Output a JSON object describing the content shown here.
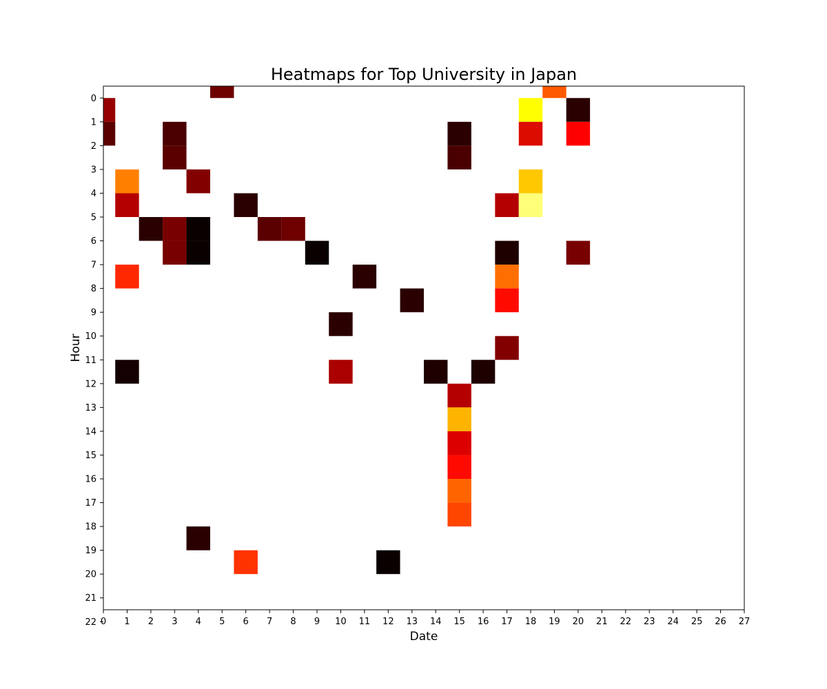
{
  "chart_data": {
    "type": "heatmap",
    "title": "Heatmaps for Top University in Japan",
    "xlabel": "Date",
    "ylabel": "Hour",
    "x_ticks": [
      "0",
      "1",
      "2",
      "3",
      "4",
      "5",
      "6",
      "7",
      "8",
      "9",
      "10",
      "11",
      "12",
      "13",
      "14",
      "15",
      "16",
      "17",
      "18",
      "19",
      "20",
      "21",
      "22",
      "23",
      "24",
      "25",
      "26",
      "27"
    ],
    "y_ticks": [
      "0",
      "1",
      "2",
      "3",
      "4",
      "5",
      "6",
      "7",
      "8",
      "9",
      "10",
      "11",
      "12",
      "13",
      "14",
      "15",
      "16",
      "17",
      "18",
      "19",
      "20",
      "21",
      "22"
    ],
    "xlim": [
      0,
      27
    ],
    "ylim": [
      22,
      0
    ],
    "colormap": "hot",
    "background_color": "#ffffff",
    "grid": false,
    "cells": [
      {
        "date": 5,
        "hour": 0,
        "color": "#6e0000"
      },
      {
        "date": 19,
        "hour": 0,
        "color": "#ff5a00"
      },
      {
        "date": 0,
        "hour": 1,
        "color": "#960000"
      },
      {
        "date": 18,
        "hour": 1,
        "color": "#ffff00"
      },
      {
        "date": 20,
        "hour": 1,
        "color": "#2a0000"
      },
      {
        "date": 0,
        "hour": 2,
        "color": "#5a0000"
      },
      {
        "date": 3,
        "hour": 2,
        "color": "#4a0000"
      },
      {
        "date": 15,
        "hour": 2,
        "color": "#2a0000"
      },
      {
        "date": 18,
        "hour": 2,
        "color": "#dc0c00"
      },
      {
        "date": 20,
        "hour": 2,
        "color": "#ff0000"
      },
      {
        "date": 3,
        "hour": 3,
        "color": "#5a0000"
      },
      {
        "date": 15,
        "hour": 3,
        "color": "#4a0000"
      },
      {
        "date": 1,
        "hour": 4,
        "color": "#ff8000"
      },
      {
        "date": 4,
        "hour": 4,
        "color": "#820000"
      },
      {
        "date": 18,
        "hour": 4,
        "color": "#ffc800"
      },
      {
        "date": 1,
        "hour": 5,
        "color": "#b40000"
      },
      {
        "date": 6,
        "hour": 5,
        "color": "#2a0000"
      },
      {
        "date": 17,
        "hour": 5,
        "color": "#b40000"
      },
      {
        "date": 18,
        "hour": 5,
        "color": "#ffff78"
      },
      {
        "date": 2,
        "hour": 6,
        "color": "#2a0000"
      },
      {
        "date": 3,
        "hour": 6,
        "color": "#780000"
      },
      {
        "date": 4,
        "hour": 6,
        "color": "#0a0000"
      },
      {
        "date": 7,
        "hour": 6,
        "color": "#5a0000"
      },
      {
        "date": 8,
        "hour": 6,
        "color": "#6e0000"
      },
      {
        "date": 3,
        "hour": 7,
        "color": "#780000"
      },
      {
        "date": 4,
        "hour": 7,
        "color": "#0a0000"
      },
      {
        "date": 9,
        "hour": 7,
        "color": "#0a0000"
      },
      {
        "date": 17,
        "hour": 7,
        "color": "#1e0000"
      },
      {
        "date": 20,
        "hour": 7,
        "color": "#780000"
      },
      {
        "date": 1,
        "hour": 8,
        "color": "#ff2800"
      },
      {
        "date": 11,
        "hour": 8,
        "color": "#2a0000"
      },
      {
        "date": 17,
        "hour": 8,
        "color": "#ff6e00"
      },
      {
        "date": 13,
        "hour": 9,
        "color": "#2a0000"
      },
      {
        "date": 17,
        "hour": 9,
        "color": "#ff0a00"
      },
      {
        "date": 10,
        "hour": 10,
        "color": "#2a0000"
      },
      {
        "date": 17,
        "hour": 11,
        "color": "#820000"
      },
      {
        "date": 1,
        "hour": 12,
        "color": "#140000"
      },
      {
        "date": 10,
        "hour": 12,
        "color": "#aa0000"
      },
      {
        "date": 14,
        "hour": 12,
        "color": "#1e0000"
      },
      {
        "date": 16,
        "hour": 12,
        "color": "#1e0000"
      },
      {
        "date": 15,
        "hour": 13,
        "color": "#b40000"
      },
      {
        "date": 15,
        "hour": 14,
        "color": "#ffb400"
      },
      {
        "date": 15,
        "hour": 15,
        "color": "#dc0000"
      },
      {
        "date": 15,
        "hour": 16,
        "color": "#ff0a00"
      },
      {
        "date": 15,
        "hour": 17,
        "color": "#ff6400"
      },
      {
        "date": 15,
        "hour": 18,
        "color": "#ff4600"
      },
      {
        "date": 4,
        "hour": 19,
        "color": "#2a0000"
      },
      {
        "date": 6,
        "hour": 20,
        "color": "#ff3200"
      },
      {
        "date": 12,
        "hour": 20,
        "color": "#0a0000"
      }
    ]
  }
}
